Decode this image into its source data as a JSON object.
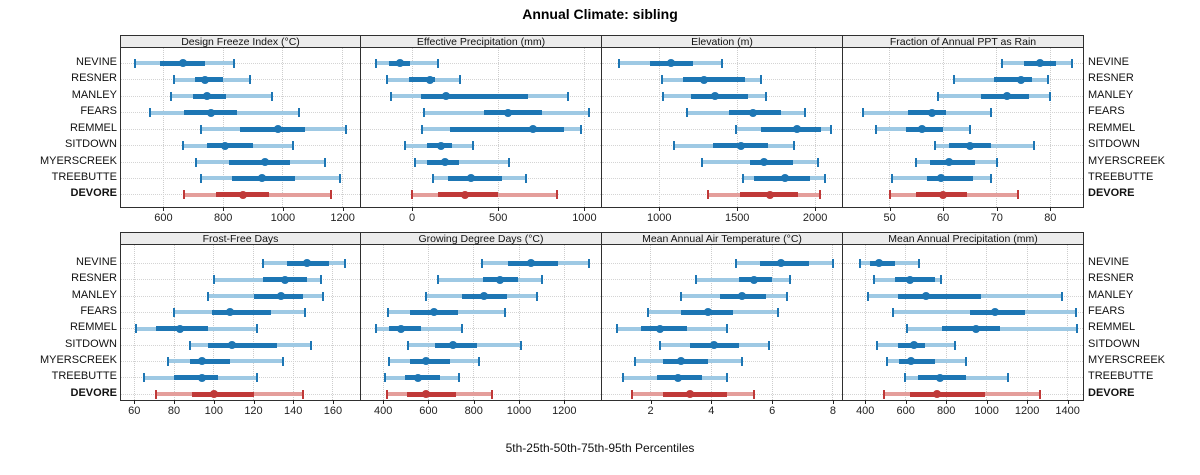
{
  "title": "Annual Climate: sibling",
  "caption": "5th-25th-50th-75th-95th Percentiles",
  "percentile_labels": [
    "5th",
    "25th",
    "50th",
    "75th",
    "95th"
  ],
  "stations": [
    "NEVINE",
    "RESNER",
    "MANLEY",
    "FEARS",
    "REMMEL",
    "SITDOWN",
    "MYERSCREEK",
    "TREEBUTTE",
    "DEVORE"
  ],
  "highlight_station": "DEVORE",
  "colors": {
    "blue": "#1d76b4",
    "blue_light": "#9ec9e4",
    "red": "#c03938",
    "red_light": "#e49e9b",
    "grid": "#d4d4d4",
    "header_bg": "#ececec",
    "border": "#2f2f2f"
  },
  "chart_data": [
    {
      "type": "interval-dotplot",
      "title": "Design Freeze Index (°C)",
      "xlim": [
        458,
        1258
      ],
      "ticks": [
        600,
        800,
        1000,
        1200
      ],
      "series": [
        {
          "name": "NEVINE",
          "values": [
            505,
            590,
            665,
            740,
            835
          ]
        },
        {
          "name": "RESNER",
          "values": [
            635,
            705,
            740,
            800,
            890
          ]
        },
        {
          "name": "MANLEY",
          "values": [
            625,
            700,
            745,
            810,
            965
          ]
        },
        {
          "name": "FEARS",
          "values": [
            555,
            670,
            760,
            845,
            1055
          ]
        },
        {
          "name": "REMMEL",
          "values": [
            725,
            855,
            985,
            1075,
            1210
          ]
        },
        {
          "name": "SITDOWN",
          "values": [
            665,
            745,
            805,
            900,
            1035
          ]
        },
        {
          "name": "MYERSCREEK",
          "values": [
            710,
            820,
            940,
            1025,
            1140
          ]
        },
        {
          "name": "TREEBUTTE",
          "values": [
            725,
            830,
            930,
            1040,
            1190
          ]
        },
        {
          "name": "DEVORE",
          "values": [
            670,
            775,
            865,
            955,
            1160
          ]
        }
      ]
    },
    {
      "type": "interval-dotplot",
      "title": "Effective Precipitation (mm)",
      "xlim": [
        -296,
        1096
      ],
      "ticks": [
        0,
        500,
        1000
      ],
      "series": [
        {
          "name": "NEVINE",
          "values": [
            -210,
            -135,
            -70,
            -10,
            150
          ]
        },
        {
          "name": "RESNER",
          "values": [
            -145,
            -15,
            105,
            135,
            280
          ]
        },
        {
          "name": "MANLEY",
          "values": [
            -120,
            50,
            195,
            675,
            905
          ]
        },
        {
          "name": "FEARS",
          "values": [
            70,
            415,
            555,
            755,
            1025
          ]
        },
        {
          "name": "REMMEL",
          "values": [
            60,
            220,
            700,
            880,
            980
          ]
        },
        {
          "name": "SITDOWN",
          "values": [
            -40,
            85,
            170,
            230,
            355
          ]
        },
        {
          "name": "MYERSCREEK",
          "values": [
            15,
            85,
            190,
            270,
            560
          ]
        },
        {
          "name": "TREEBUTTE",
          "values": [
            120,
            210,
            340,
            520,
            660
          ]
        },
        {
          "name": "DEVORE",
          "values": [
            0,
            150,
            310,
            500,
            840
          ]
        }
      ]
    },
    {
      "type": "interval-dotplot",
      "title": "Elevation (m)",
      "xlim": [
        633,
        2172
      ],
      "ticks": [
        1000,
        1500,
        2000
      ],
      "series": [
        {
          "name": "NEVINE",
          "values": [
            740,
            940,
            1075,
            1215,
            1400
          ]
        },
        {
          "name": "RESNER",
          "values": [
            1015,
            1155,
            1290,
            1550,
            1650
          ]
        },
        {
          "name": "MANLEY",
          "values": [
            1025,
            1205,
            1360,
            1570,
            1685
          ]
        },
        {
          "name": "FEARS",
          "values": [
            1180,
            1450,
            1600,
            1780,
            1935
          ]
        },
        {
          "name": "REMMEL",
          "values": [
            1490,
            1655,
            1885,
            2040,
            2100
          ]
        },
        {
          "name": "SITDOWN",
          "values": [
            1095,
            1345,
            1525,
            1695,
            1865
          ]
        },
        {
          "name": "MYERSCREEK",
          "values": [
            1275,
            1580,
            1670,
            1855,
            2020
          ]
        },
        {
          "name": "TREEBUTTE",
          "values": [
            1535,
            1605,
            1805,
            1970,
            2060
          ]
        },
        {
          "name": "DEVORE",
          "values": [
            1310,
            1520,
            1710,
            1890,
            2030
          ]
        }
      ]
    },
    {
      "type": "interval-dotplot",
      "title": "Fraction of Annual PPT as Rain",
      "xlim": [
        41.3,
        86.1
      ],
      "ticks": [
        50,
        60,
        70,
        80
      ],
      "series": [
        {
          "name": "NEVINE",
          "values": [
            71,
            75,
            78,
            81,
            84
          ]
        },
        {
          "name": "RESNER",
          "values": [
            62,
            69.5,
            74.5,
            76.5,
            79.5
          ]
        },
        {
          "name": "MANLEY",
          "values": [
            59,
            67,
            72,
            76,
            80
          ]
        },
        {
          "name": "FEARS",
          "values": [
            45,
            53.5,
            58,
            60.5,
            69
          ]
        },
        {
          "name": "REMMEL",
          "values": [
            47.5,
            53,
            56,
            60,
            65
          ]
        },
        {
          "name": "SITDOWN",
          "values": [
            58.5,
            61,
            65,
            69,
            77
          ]
        },
        {
          "name": "MYERSCREEK",
          "values": [
            55,
            57.5,
            61,
            66,
            70
          ]
        },
        {
          "name": "TREEBUTTE",
          "values": [
            50.5,
            57,
            59.5,
            65.5,
            69
          ]
        },
        {
          "name": "DEVORE",
          "values": [
            50,
            55,
            60,
            64.5,
            74
          ]
        }
      ]
    },
    {
      "type": "interval-dotplot",
      "title": "Frost-Free Days",
      "xlim": [
        53.3,
        173.6
      ],
      "ticks": [
        60,
        80,
        100,
        120,
        140,
        160
      ],
      "series": [
        {
          "name": "NEVINE",
          "values": [
            125,
            137,
            147,
            158,
            166
          ]
        },
        {
          "name": "RESNER",
          "values": [
            100,
            125,
            136,
            147,
            154
          ]
        },
        {
          "name": "MANLEY",
          "values": [
            97,
            120,
            134,
            145,
            155
          ]
        },
        {
          "name": "FEARS",
          "values": [
            80,
            99,
            108,
            129,
            146
          ]
        },
        {
          "name": "REMMEL",
          "values": [
            61,
            71,
            83,
            97,
            122
          ]
        },
        {
          "name": "SITDOWN",
          "values": [
            88,
            97,
            109,
            132,
            149
          ]
        },
        {
          "name": "MYERSCREEK",
          "values": [
            77,
            88,
            94,
            108,
            135
          ]
        },
        {
          "name": "TREEBUTTE",
          "values": [
            65,
            80,
            94,
            102,
            122
          ]
        },
        {
          "name": "DEVORE",
          "values": [
            71,
            89,
            100,
            120,
            145
          ]
        }
      ]
    },
    {
      "type": "interval-dotplot",
      "title": "Growing Degree Days (°C)",
      "xlim": [
        302,
        1362
      ],
      "ticks": [
        400,
        600,
        800,
        1000,
        1200
      ],
      "series": [
        {
          "name": "NEVINE",
          "values": [
            835,
            950,
            1055,
            1170,
            1310
          ]
        },
        {
          "name": "RESNER",
          "values": [
            640,
            840,
            915,
            995,
            1100
          ]
        },
        {
          "name": "MANLEY",
          "values": [
            590,
            750,
            845,
            945,
            1080
          ]
        },
        {
          "name": "FEARS",
          "values": [
            420,
            520,
            625,
            730,
            940
          ]
        },
        {
          "name": "REMMEL",
          "values": [
            370,
            425,
            480,
            565,
            750
          ]
        },
        {
          "name": "SITDOWN",
          "values": [
            510,
            630,
            710,
            815,
            1010
          ]
        },
        {
          "name": "MYERSCREEK",
          "values": [
            425,
            520,
            590,
            695,
            825
          ]
        },
        {
          "name": "TREEBUTTE",
          "values": [
            410,
            495,
            555,
            650,
            735
          ]
        },
        {
          "name": "DEVORE",
          "values": [
            415,
            505,
            590,
            720,
            880
          ]
        }
      ]
    },
    {
      "type": "interval-dotplot",
      "title": "Mean Annual Air Temperature (°C)",
      "xlim": [
        0.4,
        8.3
      ],
      "ticks": [
        2,
        4,
        6,
        8
      ],
      "series": [
        {
          "name": "NEVINE",
          "values": [
            4.8,
            5.6,
            6.3,
            7.2,
            8.0
          ]
        },
        {
          "name": "RESNER",
          "values": [
            3.5,
            4.9,
            5.4,
            6.0,
            6.6
          ]
        },
        {
          "name": "MANLEY",
          "values": [
            3.0,
            4.3,
            5.0,
            5.8,
            6.5
          ]
        },
        {
          "name": "FEARS",
          "values": [
            1.9,
            3.0,
            3.9,
            4.7,
            6.2
          ]
        },
        {
          "name": "REMMEL",
          "values": [
            0.9,
            1.7,
            2.3,
            3.2,
            4.5
          ]
        },
        {
          "name": "SITDOWN",
          "values": [
            2.3,
            3.3,
            4.1,
            4.9,
            5.9
          ]
        },
        {
          "name": "MYERSCREEK",
          "values": [
            1.5,
            2.4,
            3.0,
            3.9,
            5.0
          ]
        },
        {
          "name": "TREEBUTTE",
          "values": [
            1.1,
            2.2,
            2.9,
            3.7,
            4.5
          ]
        },
        {
          "name": "DEVORE",
          "values": [
            1.4,
            2.4,
            3.3,
            4.5,
            5.4
          ]
        }
      ]
    },
    {
      "type": "interval-dotplot",
      "title": "Mean Annual Precipitation (mm)",
      "xlim": [
        290,
        1476
      ],
      "ticks": [
        400,
        600,
        800,
        1000,
        1200,
        1400
      ],
      "series": [
        {
          "name": "NEVINE",
          "values": [
            375,
            425,
            470,
            545,
            665
          ]
        },
        {
          "name": "RESNER",
          "values": [
            445,
            545,
            620,
            745,
            775
          ]
        },
        {
          "name": "MANLEY",
          "values": [
            415,
            560,
            700,
            970,
            1370
          ]
        },
        {
          "name": "FEARS",
          "values": [
            535,
            920,
            1040,
            1190,
            1440
          ]
        },
        {
          "name": "REMMEL",
          "values": [
            605,
            780,
            945,
            1065,
            1445
          ]
        },
        {
          "name": "SITDOWN",
          "values": [
            460,
            560,
            640,
            695,
            845
          ]
        },
        {
          "name": "MYERSCREEK",
          "values": [
            505,
            565,
            625,
            745,
            900
          ]
        },
        {
          "name": "TREEBUTTE",
          "values": [
            595,
            660,
            770,
            900,
            1105
          ]
        },
        {
          "name": "DEVORE",
          "values": [
            495,
            620,
            755,
            990,
            1265
          ]
        }
      ]
    }
  ]
}
